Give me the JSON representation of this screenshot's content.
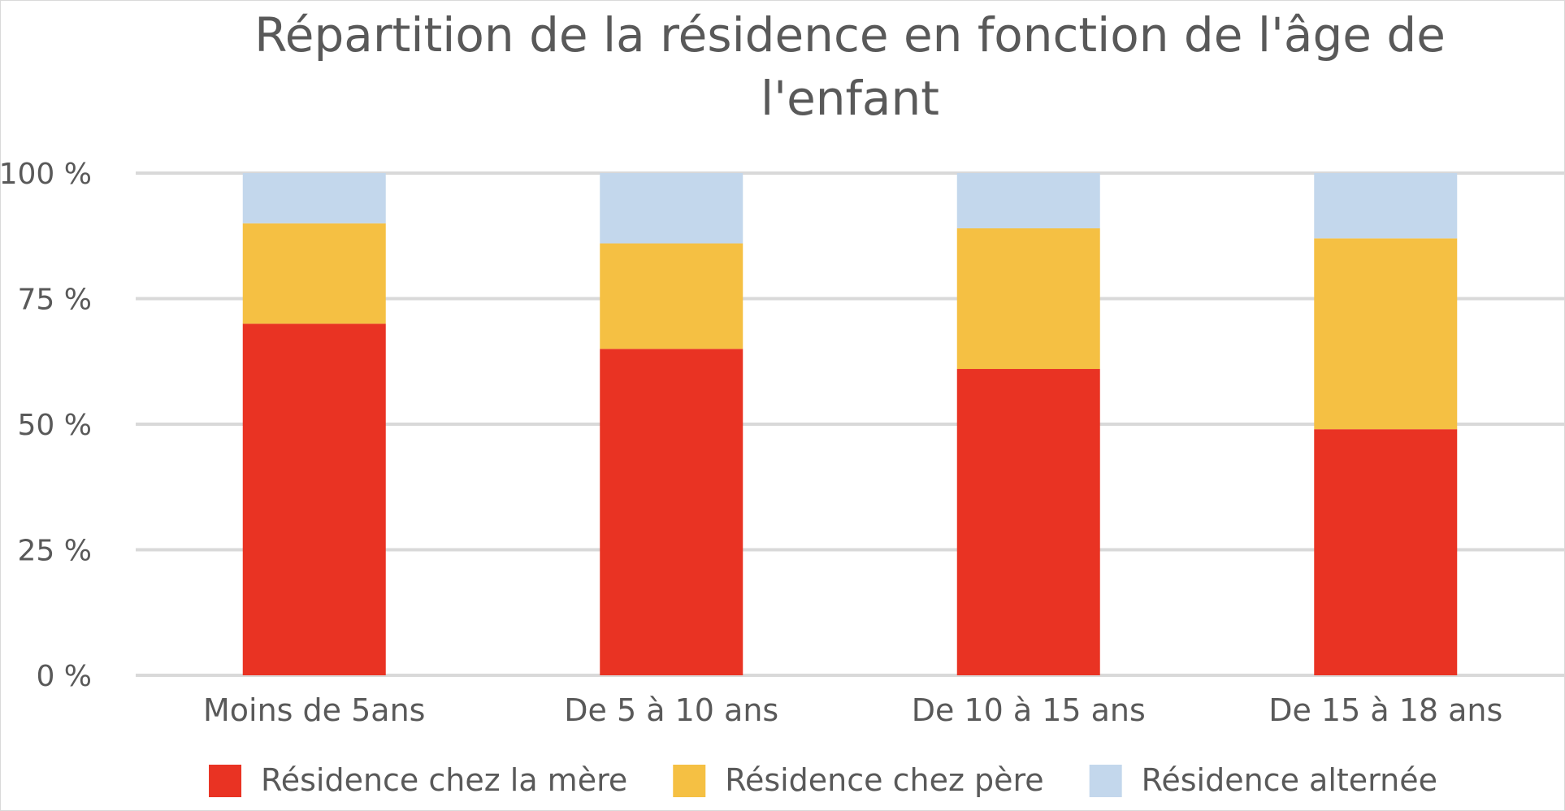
{
  "chart_data": {
    "type": "bar",
    "stacked": true,
    "title_lines": [
      "Répartition de la résidence en fonction de l'âge de",
      "l'enfant"
    ],
    "categories": [
      "Moins de 5ans",
      "De 5 à 10 ans",
      "De 10 à 15 ans",
      "De 15 à 18 ans"
    ],
    "series": [
      {
        "name": "Résidence chez la mère",
        "color": "#e93323",
        "values": [
          70,
          65,
          61,
          49
        ]
      },
      {
        "name": "Résidence chez père",
        "color": "#f5c043",
        "values": [
          20,
          21,
          28,
          38
        ]
      },
      {
        "name": "Résidence alternée",
        "color": "#c3d7ec",
        "values": [
          10,
          14,
          11,
          13
        ]
      }
    ],
    "y_ticks": [
      "0 %",
      "25 %",
      "50 %",
      "75 %",
      "100 %"
    ],
    "ylim": [
      0,
      100
    ],
    "grid": true,
    "legend_position": "bottom"
  }
}
